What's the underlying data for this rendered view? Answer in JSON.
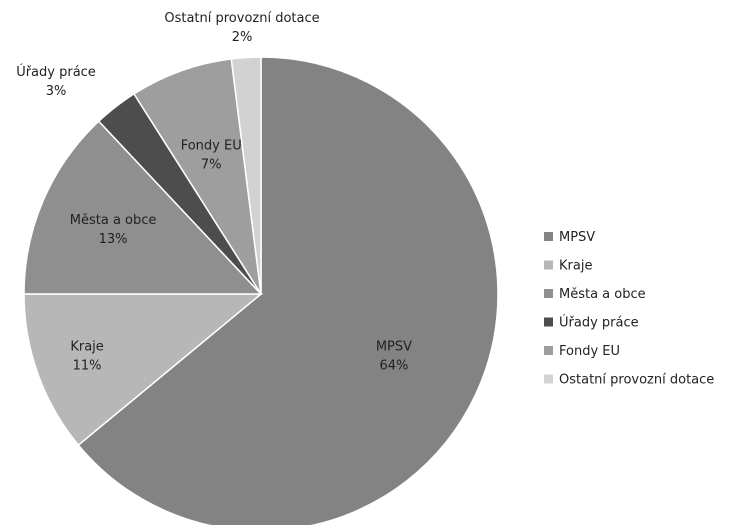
{
  "chart_data": {
    "type": "pie",
    "title": "",
    "categories": [
      "MPSV",
      "Kraje",
      "Města a obce",
      "Úřady práce",
      "Fondy EU",
      "Ostatní provozní dotace"
    ],
    "values": [
      64,
      11,
      13,
      3,
      7,
      2
    ],
    "value_labels": [
      "64%",
      "11%",
      "13%",
      "3%",
      "7%",
      "2%"
    ],
    "colors": [
      "#838383",
      "#b7b7b7",
      "#8f8f8f",
      "#4d4d4d",
      "#9e9e9e",
      "#d2d2d2"
    ],
    "start_angle_deg": 0,
    "direction": "clockwise",
    "legend_position": "right"
  }
}
